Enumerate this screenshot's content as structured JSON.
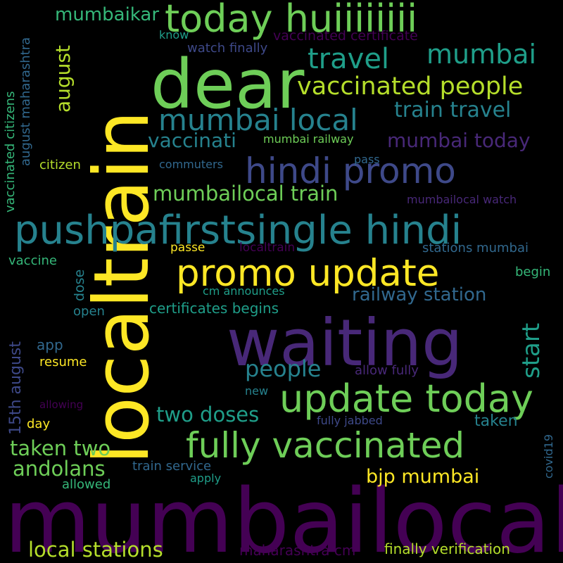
{
  "title": "Word cloud",
  "palette": {
    "background": "#000000",
    "yellow": "#fde725",
    "yellow_green": "#b5de2b",
    "light_green": "#6ece58",
    "green": "#35b779",
    "teal": "#1f9e89",
    "blue_teal": "#26828e",
    "blue": "#31688e",
    "indigo": "#3e4989",
    "purple": "#482878",
    "dark_purple": "#440154"
  },
  "words": {
    "mumbailocal": "mumbailocal",
    "localtrain": "localtrain",
    "waiting": "waiting",
    "dear": "dear",
    "pushpafirstsingle_hindi": "pushpafirstsingle hindi",
    "today_huiiiiiiii": "today huiiiiiiii",
    "promo_update": "promo update",
    "update_today": "update today",
    "fully_vaccinated": "fully vaccinated",
    "hindi_promo": "hindi promo",
    "mumbai_local": "mumbai local",
    "vaccinated_people": "vaccinated people",
    "travel": "travel",
    "mumbai": "mumbai",
    "train_travel": "train travel",
    "mumbailocal_train": "mumbailocal train",
    "mumbai_today": "mumbai today",
    "vaccinati": "vaccinati",
    "mumbaikar": "mumbaikar",
    "local_stations": "local stations",
    "two_doses": "two doses",
    "taken_two": "taken two",
    "andolans": "andolans",
    "bjp_mumbai": "bjp mumbai",
    "people": "people",
    "railway_station": "railway station",
    "start": "start",
    "august": "august",
    "15th_august": "15th august",
    "vaccinated_citizens": "vaccinated citizens",
    "august_maharashtra": "august maharashtra",
    "know": "know",
    "vaccinated_certificate": "vaccinated certificate",
    "watch_finally": "watch finally",
    "citizen": "citizen",
    "commuters": "commuters",
    "pass": "pass",
    "mumbai_railway": "mumbai railway",
    "mumbailocal_watch": "mumbailocal watch",
    "passe": "passe",
    "localtrain_small": "localtrain",
    "stations_mumbai": "stations mumbai",
    "vaccine": "vaccine",
    "dose": "dose",
    "begin": "begin",
    "cm_announces": "cm announces",
    "open": "open",
    "certificates_begins": "certificates begins",
    "app": "app",
    "resume": "resume",
    "allow_fully": "allow fully",
    "new": "new",
    "allowing": "allowing",
    "day": "day",
    "fully_jabbed": "fully jabbed",
    "taken": "taken",
    "covid19": "covid19",
    "train_service": "train service",
    "apply": "apply",
    "allowed": "allowed",
    "maharashtra_cm": "maharashtra cm",
    "finally_verification": "finally verification"
  }
}
